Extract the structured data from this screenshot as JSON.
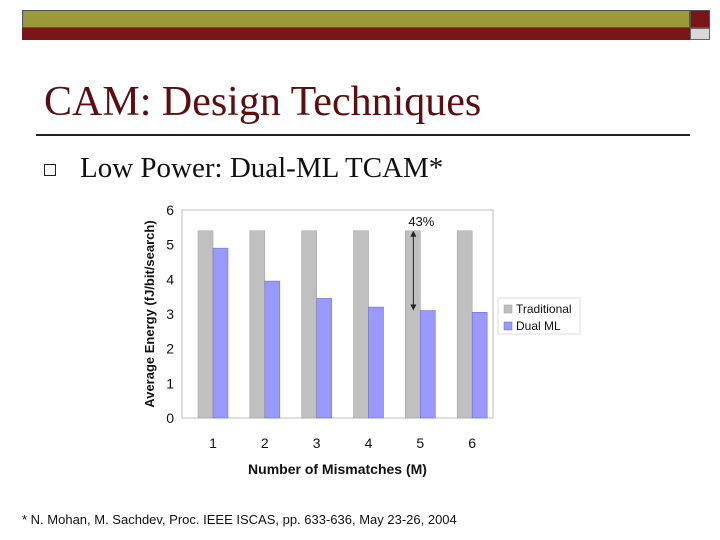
{
  "slide": {
    "title": "CAM: Design Techniques",
    "bullet": "Low Power: Dual-ML TCAM*",
    "footnote": "* N. Mohan, M. Sachdev, Proc. IEEE ISCAS, pp. 633-636, May 23-26, 2004"
  },
  "colors": {
    "olive_bar": "#9a9a3a",
    "maroon_bar": "#7a1518",
    "title": "#5a0e10",
    "traditional": "#c0c0c0",
    "dual_ml": "#9999ff"
  },
  "chart_data": {
    "type": "bar",
    "categories": [
      "1",
      "2",
      "3",
      "4",
      "5",
      "6"
    ],
    "series": [
      {
        "name": "Traditional",
        "values": [
          5.4,
          5.4,
          5.4,
          5.4,
          5.4,
          5.4
        ]
      },
      {
        "name": "Dual ML",
        "values": [
          4.9,
          3.95,
          3.45,
          3.2,
          3.1,
          3.05
        ]
      }
    ],
    "xlabel": "Number of Mismatches (M)",
    "ylabel": "Average Energy (fJ/bit/search)",
    "ylim": [
      0,
      6
    ],
    "yticks": [
      "0",
      "1",
      "2",
      "3",
      "4",
      "5",
      "6"
    ],
    "annotation": {
      "text": "43%",
      "category": "5",
      "from": 5.4,
      "to": 3.1
    },
    "legend_position": "right",
    "grid": false
  }
}
